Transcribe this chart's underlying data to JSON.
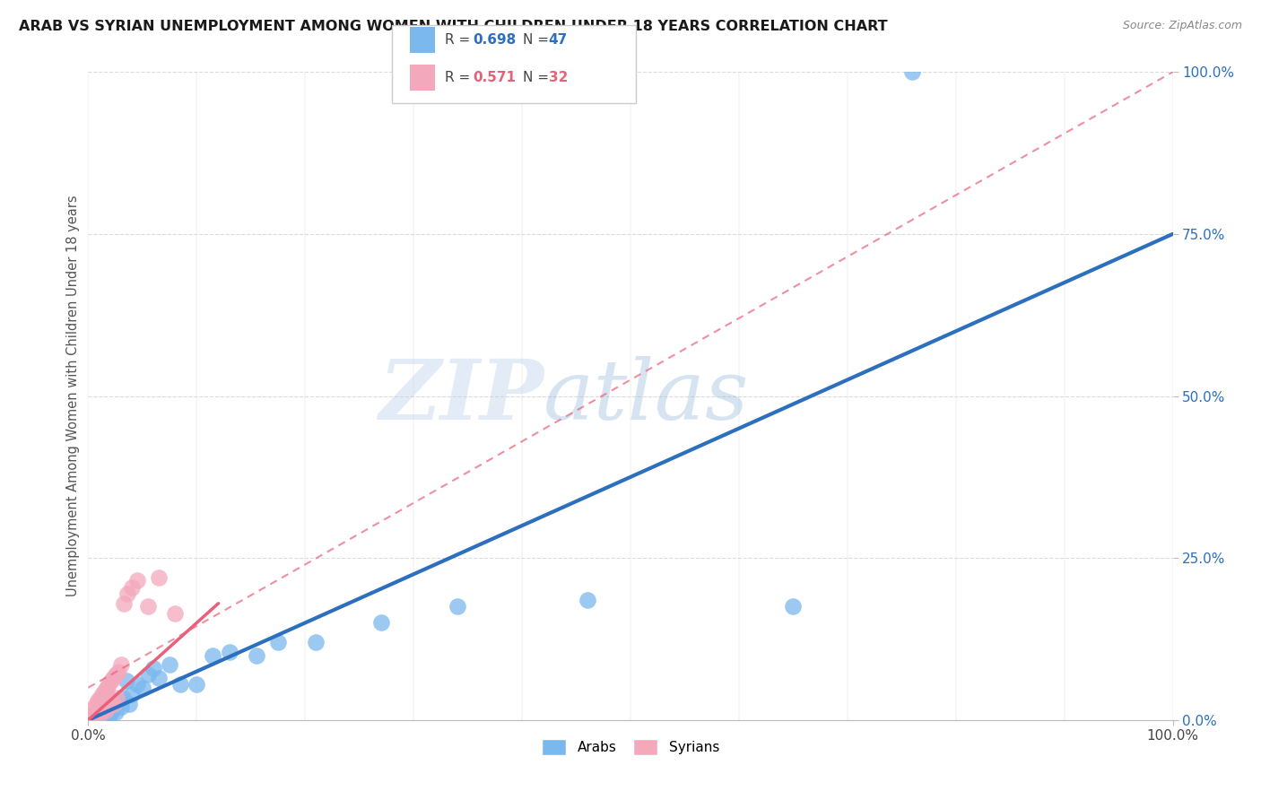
{
  "title": "ARAB VS SYRIAN UNEMPLOYMENT AMONG WOMEN WITH CHILDREN UNDER 18 YEARS CORRELATION CHART",
  "source": "Source: ZipAtlas.com",
  "ylabel": "Unemployment Among Women with Children Under 18 years",
  "xlim": [
    0,
    1
  ],
  "ylim": [
    0,
    1
  ],
  "ytick_labels": [
    "0.0%",
    "25.0%",
    "50.0%",
    "75.0%",
    "100.0%"
  ],
  "ytick_values": [
    0.0,
    0.25,
    0.5,
    0.75,
    1.0
  ],
  "xtick_labels": [
    "0.0%",
    "100.0%"
  ],
  "xtick_values": [
    0.0,
    1.0
  ],
  "arab_R": 0.698,
  "arab_N": 47,
  "syrian_R": 0.571,
  "syrian_N": 32,
  "arab_color": "#7ab8ee",
  "syrian_color": "#f4a8bc",
  "arab_line_color": "#2c6fbe",
  "syrian_line_color": "#e8607a",
  "watermark_zip": "ZIP",
  "watermark_atlas": "atlas",
  "legend_arab_label": "Arabs",
  "legend_syrian_label": "Syrians",
  "arab_scatter_x": [
    0.004,
    0.005,
    0.006,
    0.007,
    0.008,
    0.009,
    0.01,
    0.01,
    0.011,
    0.012,
    0.013,
    0.014,
    0.015,
    0.015,
    0.016,
    0.017,
    0.018,
    0.019,
    0.02,
    0.021,
    0.022,
    0.023,
    0.025,
    0.027,
    0.03,
    0.032,
    0.035,
    0.038,
    0.04,
    0.045,
    0.05,
    0.055,
    0.06,
    0.065,
    0.075,
    0.085,
    0.1,
    0.115,
    0.13,
    0.155,
    0.175,
    0.21,
    0.27,
    0.34,
    0.46,
    0.65,
    0.76
  ],
  "arab_scatter_y": [
    0.005,
    0.008,
    0.006,
    0.01,
    0.005,
    0.012,
    0.004,
    0.015,
    0.008,
    0.01,
    0.006,
    0.012,
    0.007,
    0.018,
    0.012,
    0.02,
    0.008,
    0.014,
    0.01,
    0.022,
    0.015,
    0.025,
    0.012,
    0.03,
    0.02,
    0.035,
    0.06,
    0.025,
    0.04,
    0.055,
    0.05,
    0.07,
    0.08,
    0.065,
    0.085,
    0.055,
    0.055,
    0.1,
    0.105,
    0.1,
    0.12,
    0.12,
    0.15,
    0.175,
    0.185,
    0.175,
    1.0
  ],
  "syrian_scatter_x": [
    0.004,
    0.005,
    0.006,
    0.007,
    0.008,
    0.009,
    0.01,
    0.011,
    0.012,
    0.013,
    0.014,
    0.015,
    0.016,
    0.017,
    0.018,
    0.019,
    0.02,
    0.021,
    0.022,
    0.023,
    0.024,
    0.025,
    0.026,
    0.028,
    0.03,
    0.033,
    0.036,
    0.04,
    0.045,
    0.055,
    0.065,
    0.08
  ],
  "syrian_scatter_y": [
    0.006,
    0.018,
    0.01,
    0.025,
    0.012,
    0.03,
    0.008,
    0.035,
    0.015,
    0.04,
    0.02,
    0.045,
    0.015,
    0.05,
    0.02,
    0.055,
    0.025,
    0.06,
    0.03,
    0.065,
    0.025,
    0.07,
    0.035,
    0.075,
    0.085,
    0.18,
    0.195,
    0.205,
    0.215,
    0.175,
    0.22,
    0.165
  ],
  "arab_line": [
    [
      0.0,
      0.0
    ],
    [
      1.0,
      0.75
    ]
  ],
  "syrian_dash_line": [
    [
      0.0,
      -0.05
    ],
    [
      1.0,
      0.95
    ]
  ],
  "background_color": "#ffffff",
  "grid_color": "#cccccc"
}
